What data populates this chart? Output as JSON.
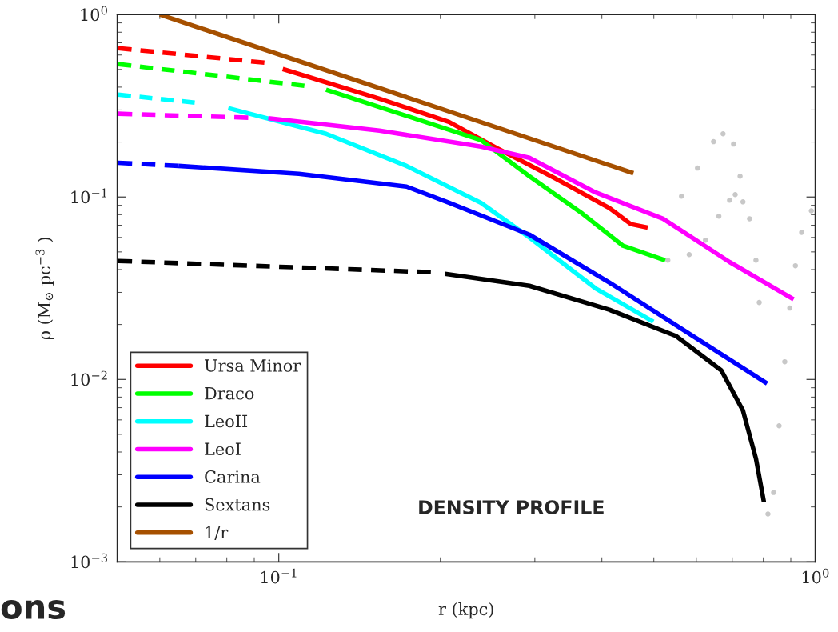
{
  "chart_data": {
    "type": "line",
    "xlabel": "r (kpc)",
    "ylabel": "ρ (M$_{⊙}$ pc$^{−3}$ )",
    "log": "xy",
    "xlim": [
      0.05,
      1
    ],
    "ylim": [
      0.001,
      1
    ],
    "xticks": [
      {
        "value": 0.1,
        "label": "10$^{−1}$"
      },
      {
        "value": 1,
        "label": "10$^{0}$"
      }
    ],
    "yticks": [
      {
        "value": 0.001,
        "label": "10$^{−3}$"
      },
      {
        "value": 0.01,
        "label": "10$^{−2}$"
      },
      {
        "value": 0.1,
        "label": "10$^{−1}$"
      },
      {
        "value": 1,
        "label": "10$^{0}$"
      }
    ],
    "legend": "bottom left",
    "annotations": [
      "DENSITY PROFILE",
      "ons"
    ],
    "series": [
      {
        "type": "line",
        "line_style": "dashed",
        "color": "#ff0000",
        "x": [
          0.0502,
          0.094
        ],
        "values": [
          0.654,
          0.545
        ]
      },
      {
        "type": "line",
        "line_style": "solid",
        "name": "Ursa Minor",
        "color": "#ff0000",
        "x": [
          0.1017,
          0.154,
          0.2075,
          0.255,
          0.328,
          0.413,
          0.453,
          0.487
        ],
        "values": [
          0.503,
          0.346,
          0.258,
          0.185,
          0.126,
          0.087,
          0.071,
          0.068
        ]
      },
      {
        "type": "line",
        "line_style": "dashed",
        "color": "#00ff00",
        "x": [
          0.0502,
          0.1116
        ],
        "values": [
          0.535,
          0.407
        ]
      },
      {
        "type": "line",
        "line_style": "solid",
        "name": "Draco",
        "color": "#00ff00",
        "x": [
          0.1225,
          0.2075,
          0.238,
          0.293,
          0.368,
          0.438,
          0.525
        ],
        "values": [
          0.387,
          0.234,
          0.205,
          0.13,
          0.081,
          0.054,
          0.045
        ]
      },
      {
        "type": "line",
        "line_style": "dashed",
        "color": "#00ffff",
        "x": [
          0.0502,
          0.0697
        ],
        "values": [
          0.364,
          0.329
        ]
      },
      {
        "type": "line",
        "line_style": "solid",
        "name": "LeoII",
        "color": "#00ffff",
        "x": [
          0.0805,
          0.1225,
          0.173,
          0.238,
          0.293,
          0.389,
          0.499
        ],
        "values": [
          0.307,
          0.222,
          0.148,
          0.093,
          0.06,
          0.0316,
          0.0207
        ]
      },
      {
        "type": "line",
        "line_style": "dashed",
        "color": "#ff00ff",
        "x": [
          0.0502,
          0.0877
        ],
        "values": [
          0.286,
          0.272
        ]
      },
      {
        "type": "line",
        "line_style": "solid",
        "name": "LeoI",
        "color": "#ff00ff",
        "x": [
          0.0956,
          0.154,
          0.238,
          0.293,
          0.389,
          0.52,
          0.692,
          0.911
        ],
        "values": [
          0.27,
          0.231,
          0.189,
          0.164,
          0.106,
          0.076,
          0.044,
          0.0275
        ]
      },
      {
        "type": "line",
        "line_style": "dashed",
        "color": "#0000ff",
        "x": [
          0.0502,
          0.065
        ],
        "values": [
          0.154,
          0.148
        ]
      },
      {
        "type": "line",
        "line_style": "solid",
        "name": "Carina",
        "color": "#0000ff",
        "x": [
          0.065,
          0.109,
          0.173,
          0.2075,
          0.293,
          0.413,
          0.582,
          0.813
        ],
        "values": [
          0.148,
          0.134,
          0.114,
          0.093,
          0.0622,
          0.034,
          0.0178,
          0.0095
        ]
      },
      {
        "type": "line",
        "line_style": "dashed",
        "color": "#000000",
        "x": [
          0.0502,
          0.192
        ],
        "values": [
          0.0446,
          0.0387
        ]
      },
      {
        "type": "line",
        "line_style": "solid",
        "name": "Sextans",
        "color": "#000000",
        "x": [
          0.204,
          0.293,
          0.413,
          0.55,
          0.668,
          0.733,
          0.775,
          0.802
        ],
        "values": [
          0.0379,
          0.0326,
          0.0241,
          0.0173,
          0.0112,
          0.00675,
          0.00368,
          0.00213
        ]
      },
      {
        "type": "line",
        "line_style": "solid",
        "name": "1/r",
        "color": "#a65000",
        "x": [
          0.06,
          0.458
        ],
        "values": [
          1.0,
          0.135
        ]
      },
      {
        "type": "scatter",
        "marker": "circle",
        "color": "#c8c8c8",
        "x": [
          0.563,
          0.603,
          0.646,
          0.673,
          0.704,
          0.724
        ],
        "values": [
          0.101,
          0.144,
          0.201,
          0.222,
          0.195,
          0.13
        ]
      },
      {
        "type": "scatter",
        "marker": "circle",
        "color": "#c8c8c8",
        "x": [
          0.531,
          0.582,
          0.624,
          0.661,
          0.692,
          0.709,
          0.733,
          0.754,
          0.775,
          0.786
        ],
        "values": [
          0.045,
          0.0483,
          0.058,
          0.0785,
          0.096,
          0.103,
          0.094,
          0.076,
          0.045,
          0.0264
        ]
      },
      {
        "type": "scatter",
        "marker": "circle",
        "color": "#c8c8c8",
        "x": [
          0.816,
          0.836,
          0.856,
          0.877,
          0.896,
          0.918,
          0.943,
          0.983
        ],
        "values": [
          0.00183,
          0.0024,
          0.00557,
          0.0125,
          0.0246,
          0.042,
          0.064,
          0.084
        ]
      }
    ]
  }
}
